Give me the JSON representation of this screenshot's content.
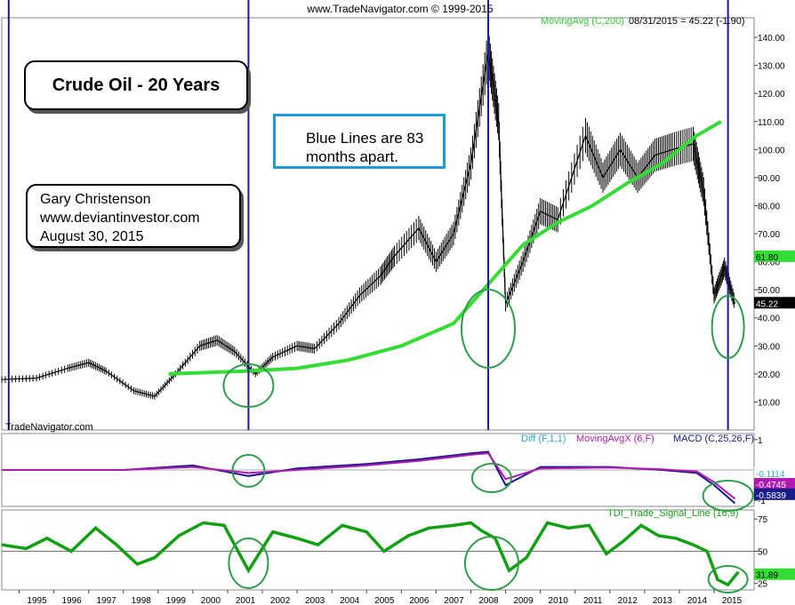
{
  "header": {
    "copyright": "www.TradeNavigator.com © 1999-2015",
    "ma_legend": "MovingAvg (C,200)",
    "last_value": "08/31/2015 = 45.22 (-1.90)",
    "watermark": "TradeNavigator.com"
  },
  "annotations": {
    "title": "Crude Oil - 20 Years",
    "note_lines": [
      "Blue Lines are 83",
      "months apart."
    ],
    "author_lines": [
      "Gary Christenson",
      "www.deviantinvestor.com",
      "August 30, 2015"
    ]
  },
  "colors": {
    "price": "#000000",
    "moving_avg": "#33dd33",
    "cycle_lines": "#1a1aa0",
    "circles": "#2e9e4a",
    "macd": "#1a1a8a",
    "macd_signal": "#b01ab0",
    "diff": "#22bbcc",
    "tdi": "#11a011"
  },
  "chart_data": [
    {
      "type": "line",
      "panel": "price",
      "x_range": [
        1994.5,
        2016.1
      ],
      "ylim": [
        0,
        147
      ],
      "y_ticks": [
        10,
        20,
        30,
        40,
        50,
        60,
        70,
        80,
        90,
        100,
        110,
        120,
        130,
        140
      ],
      "y_tick_labels": [
        "10.00",
        "20.00",
        "30.00",
        "40.00",
        "50.00",
        "60.00",
        "70.00",
        "80.00",
        "90.00",
        "100.00",
        "110.00",
        "120.00",
        "130.00",
        "140.00"
      ],
      "x_ticks": [
        1995,
        1996,
        1997,
        1998,
        1999,
        2000,
        2001,
        2002,
        2003,
        2004,
        2005,
        2006,
        2007,
        2008,
        2009,
        2010,
        2011,
        2012,
        2013,
        2014,
        2015
      ],
      "x_tick_labels": [
        "1995",
        "1996",
        "1997",
        "1998",
        "1999",
        "2000",
        "2001",
        "2002",
        "2003",
        "2004",
        "2005",
        "2006",
        "2007",
        "2008",
        "2009",
        "2010",
        "2011",
        "2012",
        "2013",
        "2014",
        "2015"
      ],
      "series": [
        {
          "name": "Crude Oil",
          "x": [
            1994.5,
            1995.5,
            1996.4,
            1997.0,
            1997.5,
            1998.3,
            1998.9,
            1999.5,
            2000.2,
            2000.7,
            2001.2,
            2001.8,
            2002.3,
            2003.0,
            2003.5,
            2004.2,
            2004.8,
            2005.4,
            2005.8,
            2006.5,
            2007.0,
            2007.5,
            2008.0,
            2008.5,
            2008.8,
            2009.0,
            2009.5,
            2010.0,
            2010.5,
            2011.3,
            2011.8,
            2012.3,
            2012.8,
            2013.3,
            2013.8,
            2014.4,
            2014.7,
            2015.0,
            2015.3,
            2015.6
          ],
          "y": [
            18,
            18.5,
            22,
            24,
            21,
            14,
            12,
            20,
            30,
            32,
            28,
            20,
            26,
            30,
            29,
            38,
            48,
            55,
            62,
            72,
            60,
            70,
            95,
            135,
            110,
            45,
            60,
            78,
            75,
            105,
            90,
            100,
            90,
            98,
            100,
            102,
            85,
            48,
            58,
            45
          ]
        },
        {
          "name": "MovingAvg (C,200)",
          "x": [
            1999.3,
            2001.5,
            2003.0,
            2004.5,
            2006.0,
            2007.5,
            2008.5,
            2009.5,
            2010.5,
            2011.5,
            2012.5,
            2013.5,
            2014.5,
            2015.2
          ],
          "y": [
            20,
            21,
            22,
            25,
            30,
            38,
            52,
            66,
            74,
            80,
            88,
            95,
            105,
            110
          ]
        }
      ],
      "cycle_lines_x": [
        1994.7,
        2001.6,
        2008.5,
        2015.4
      ],
      "right_labels": [
        "61.80",
        "45.22"
      ]
    },
    {
      "type": "line",
      "panel": "macd",
      "legend": [
        "Diff (F,1,1)",
        "MovingAvgX (6,F)",
        "MACD (C,25,26,F)"
      ],
      "ylim": [
        -1.2,
        1.2
      ],
      "y_ticks": [
        1,
        0,
        -1
      ],
      "y_tick_labels": [
        "1",
        "0",
        "-1"
      ],
      "series": [
        {
          "name": "MACD (C,25,26,F)",
          "x": [
            1994.5,
            1998.0,
            2000.0,
            2001.6,
            2003.0,
            2005.0,
            2006.5,
            2008.0,
            2008.5,
            2009.0,
            2010.0,
            2012.0,
            2013.5,
            2014.5,
            2015.0,
            2015.6
          ],
          "y": [
            0,
            0,
            0.15,
            -0.2,
            0.05,
            0.2,
            0.35,
            0.55,
            0.6,
            -0.5,
            0.1,
            0.1,
            0.0,
            -0.1,
            -0.5,
            -1.1
          ]
        },
        {
          "name": "MovingAvgX (6,F)",
          "x": [
            1994.5,
            1998.0,
            2000.0,
            2001.6,
            2003.0,
            2005.0,
            2006.5,
            2008.0,
            2008.5,
            2009.0,
            2010.0,
            2012.0,
            2013.5,
            2014.5,
            2015.0,
            2015.6
          ],
          "y": [
            0,
            0,
            0.1,
            -0.1,
            0.0,
            0.15,
            0.3,
            0.5,
            0.55,
            -0.3,
            0.05,
            0.08,
            0.02,
            -0.05,
            -0.4,
            -0.95
          ]
        }
      ],
      "right_labels": [
        "-0.1114",
        "-0.4745",
        "-0.5839"
      ]
    },
    {
      "type": "line",
      "panel": "tdi",
      "legend": [
        "TDI_Trade_Signal_Line (16,9)"
      ],
      "ylim": [
        20,
        82
      ],
      "y_ticks": [
        75,
        50,
        25
      ],
      "y_tick_labels": [
        "75",
        "50",
        "25"
      ],
      "series": [
        {
          "name": "TDI_Trade_Signal_Line (16,9)",
          "x": [
            1994.5,
            1995.2,
            1995.8,
            1996.5,
            1997.2,
            1997.8,
            1998.4,
            1998.9,
            1999.6,
            2000.3,
            2000.9,
            2001.6,
            2002.3,
            2003.0,
            2003.6,
            2004.3,
            2005.0,
            2005.5,
            2006.2,
            2006.8,
            2007.5,
            2008.0,
            2008.3,
            2008.7,
            2009.1,
            2009.6,
            2010.2,
            2010.8,
            2011.4,
            2011.9,
            2012.4,
            2012.9,
            2013.4,
            2013.9,
            2014.4,
            2014.8,
            2015.1,
            2015.4,
            2015.7
          ],
          "y": [
            55,
            52,
            60,
            50,
            68,
            55,
            40,
            45,
            62,
            72,
            70,
            35,
            65,
            60,
            55,
            70,
            65,
            50,
            62,
            68,
            70,
            72,
            66,
            60,
            35,
            45,
            72,
            68,
            70,
            48,
            58,
            70,
            62,
            60,
            55,
            50,
            28,
            24,
            34
          ]
        }
      ],
      "right_labels": [
        "31.89"
      ]
    }
  ]
}
